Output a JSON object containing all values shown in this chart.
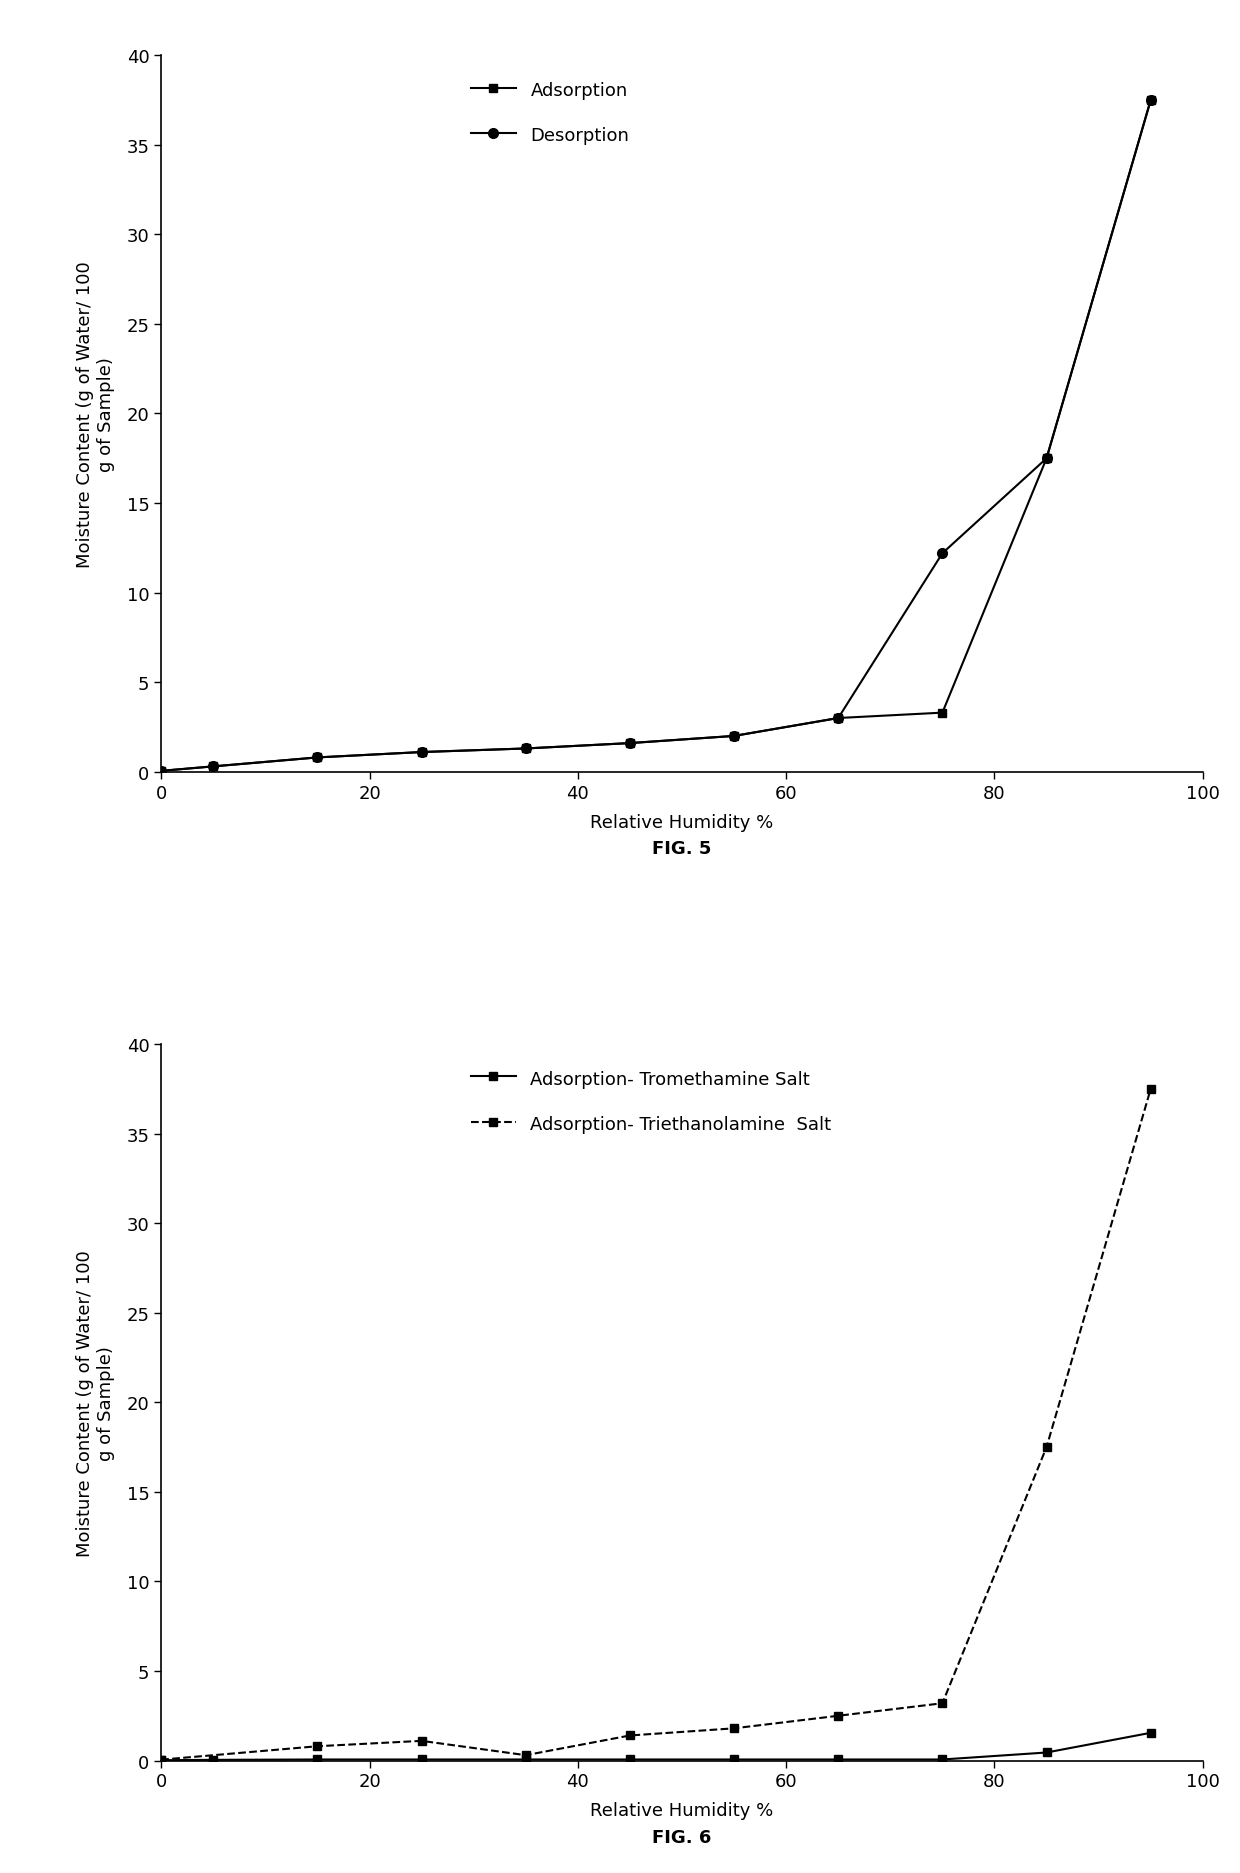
{
  "fig5": {
    "adsorption_x": [
      0,
      5,
      15,
      25,
      35,
      45,
      55,
      65,
      75,
      85,
      95
    ],
    "adsorption_y": [
      0.05,
      0.3,
      0.8,
      1.1,
      1.3,
      1.6,
      2.0,
      3.0,
      3.3,
      17.5,
      37.5
    ],
    "desorption_x": [
      0,
      5,
      15,
      25,
      35,
      45,
      55,
      65,
      75,
      85,
      95
    ],
    "desorption_y": [
      0.05,
      0.3,
      0.8,
      1.1,
      1.3,
      1.6,
      2.0,
      3.0,
      12.2,
      17.5,
      37.5
    ],
    "xlabel": "Relative Humidity %",
    "ylabel": "Moisture Content (g of Water/ 100\ng of Sample)",
    "ylim": [
      0,
      40
    ],
    "xlim": [
      0,
      100
    ],
    "yticks": [
      0,
      5,
      10,
      15,
      20,
      25,
      30,
      35,
      40
    ],
    "xticks": [
      0,
      20,
      40,
      60,
      80,
      100
    ],
    "legend1": "Adsorption",
    "legend2": "Desorption",
    "fig_label": "FIG. 5"
  },
  "fig6": {
    "tromethamine_x": [
      0,
      5,
      15,
      25,
      35,
      45,
      55,
      65,
      75,
      85,
      95
    ],
    "tromethamine_y": [
      0.02,
      0.04,
      0.06,
      0.06,
      0.06,
      0.06,
      0.06,
      0.06,
      0.06,
      0.45,
      1.55
    ],
    "triethanolamine_x": [
      0,
      15,
      25,
      35,
      45,
      55,
      65,
      75,
      85,
      95
    ],
    "triethanolamine_y": [
      0.05,
      0.8,
      1.1,
      0.3,
      1.4,
      1.8,
      2.5,
      3.2,
      17.5,
      37.5
    ],
    "xlabel": "Relative Humidity %",
    "ylabel": "Moisture Content (g of Water/ 100\ng of Sample)",
    "ylim": [
      0,
      40
    ],
    "xlim": [
      0,
      100
    ],
    "yticks": [
      0,
      5,
      10,
      15,
      20,
      25,
      30,
      35,
      40
    ],
    "xticks": [
      0,
      20,
      40,
      60,
      80,
      100
    ],
    "legend1": "Adsorption- Tromethamine Salt",
    "legend2": "Adsorption- Triethanolamine  Salt",
    "fig_label": "FIG. 6"
  },
  "line_color": "#000000",
  "background_color": "#ffffff",
  "fontsize_ticks": 13,
  "fontsize_label": 13,
  "fontsize_legend": 13,
  "fontsize_fig_label": 13
}
